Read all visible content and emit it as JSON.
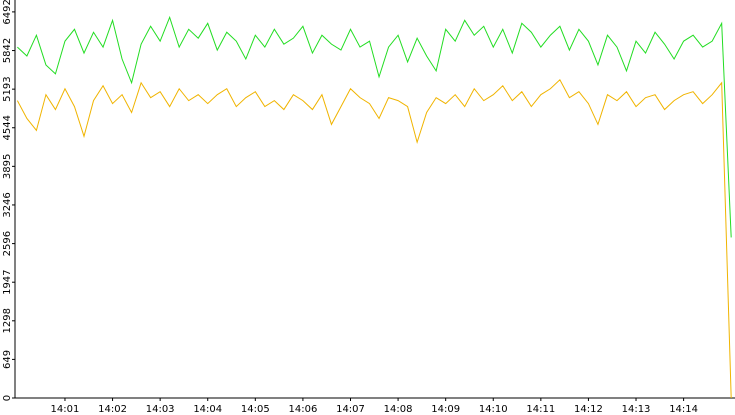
{
  "chart_data": {
    "type": "line",
    "x": [
      840.0,
      840.2,
      840.4,
      840.6,
      840.8,
      841.0,
      841.2,
      841.4,
      841.6,
      841.8,
      842.0,
      842.2,
      842.4,
      842.6,
      842.8,
      843.0,
      843.2,
      843.4,
      843.6,
      843.8,
      844.0,
      844.2,
      844.4,
      844.6,
      844.8,
      845.0,
      845.2,
      845.4,
      845.6,
      845.8,
      846.0,
      846.2,
      846.4,
      846.6,
      846.8,
      847.0,
      847.2,
      847.4,
      847.6,
      847.8,
      848.0,
      848.2,
      848.4,
      848.6,
      848.8,
      849.0,
      849.2,
      849.4,
      849.6,
      849.8,
      850.0,
      850.2,
      850.4,
      850.6,
      850.8,
      851.0,
      851.2,
      851.4,
      851.6,
      851.8,
      852.0,
      852.2,
      852.4,
      852.6,
      852.8,
      853.0,
      853.2,
      853.4,
      853.6,
      853.8,
      854.0,
      854.2,
      854.4,
      854.6,
      854.8,
      855.0
    ],
    "series": [
      {
        "color": "#22dd22",
        "values": [
          5900,
          5750,
          6100,
          5600,
          5450,
          6000,
          6200,
          5800,
          6150,
          5900,
          6350,
          5700,
          5300,
          5950,
          6250,
          6000,
          6400,
          5900,
          6200,
          6050,
          6300,
          5850,
          6150,
          6000,
          5700,
          6100,
          5900,
          6200,
          5950,
          6050,
          6250,
          5800,
          6100,
          5950,
          5850,
          6200,
          5900,
          6000,
          5400,
          5900,
          6100,
          5650,
          6050,
          5750,
          5500,
          6200,
          6000,
          6350,
          6100,
          6250,
          5900,
          6200,
          5800,
          6300,
          6150,
          5900,
          6100,
          6250,
          5850,
          6200,
          6000,
          5600,
          6100,
          5900,
          5500,
          6000,
          5800,
          6150,
          5950,
          5700,
          6000,
          6100,
          5900,
          6000,
          6300,
          2700
        ]
      },
      {
        "color": "#f0b400",
        "values": [
          5000,
          4700,
          4500,
          5100,
          4850,
          5200,
          4900,
          4400,
          5000,
          5250,
          4950,
          5100,
          4800,
          5300,
          5050,
          5150,
          4900,
          5200,
          5000,
          5100,
          4950,
          5100,
          5200,
          4900,
          5050,
          5150,
          4900,
          5000,
          4850,
          5100,
          5000,
          4850,
          5100,
          4600,
          4900,
          5200,
          5050,
          4950,
          4700,
          5050,
          5000,
          4900,
          4300,
          4800,
          5050,
          4950,
          5100,
          4900,
          5200,
          5000,
          5100,
          5250,
          5000,
          5150,
          4900,
          5100,
          5200,
          5350,
          5050,
          5150,
          4950,
          4600,
          5100,
          5000,
          5150,
          4900,
          5050,
          5100,
          4850,
          5000,
          5100,
          5150,
          4950,
          5100,
          5300,
          0
        ]
      }
    ],
    "xlim": [
      839.95,
      855.08
    ],
    "xticks": [
      {
        "value": 841,
        "label": "14:01"
      },
      {
        "value": 842,
        "label": "14:02"
      },
      {
        "value": 843,
        "label": "14:03"
      },
      {
        "value": 844,
        "label": "14:04"
      },
      {
        "value": 845,
        "label": "14:05"
      },
      {
        "value": 846,
        "label": "14:06"
      },
      {
        "value": 847,
        "label": "14:07"
      },
      {
        "value": 848,
        "label": "14:08"
      },
      {
        "value": 849,
        "label": "14:09"
      },
      {
        "value": 850,
        "label": "14:10"
      },
      {
        "value": 851,
        "label": "14:11"
      },
      {
        "value": 852,
        "label": "14:12"
      },
      {
        "value": 853,
        "label": "14:13"
      },
      {
        "value": 854,
        "label": "14:14"
      }
    ],
    "ylim": [
      0,
      6692
    ],
    "yticks": [
      0,
      649,
      1298,
      1947,
      2596,
      3246,
      3895,
      4544,
      5193,
      5842,
      6492
    ],
    "grid": false
  }
}
